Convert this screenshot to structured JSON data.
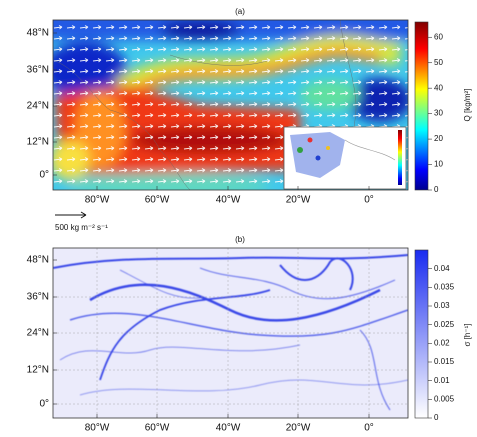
{
  "panels": [
    {
      "label": "(a)",
      "lat_ticks": [
        "48°N",
        "36°N",
        "24°N",
        "12°N",
        "0°"
      ],
      "lon_ticks": [
        "80°W",
        "60°W",
        "40°W",
        "20°W",
        "0°"
      ],
      "colorbar": {
        "label": "Q [kg/m²]",
        "lim": [
          0,
          66
        ],
        "ticks": [
          0,
          10,
          20,
          30,
          40,
          50,
          60
        ]
      },
      "scale_label": "500 kg m⁻² s⁻¹"
    },
    {
      "label": "(b)",
      "lat_ticks": [
        "48°N",
        "36°N",
        "24°N",
        "12°N",
        "0°"
      ],
      "lon_ticks": [
        "80°W",
        "60°W",
        "40°W",
        "20°W",
        "0°"
      ],
      "colorbar": {
        "label": "σ [h⁻¹]",
        "lim": [
          0,
          0.045
        ],
        "ticks": [
          0,
          0.005,
          0.01,
          0.015,
          0.02,
          0.025,
          0.03,
          0.035,
          0.04
        ]
      }
    }
  ]
}
